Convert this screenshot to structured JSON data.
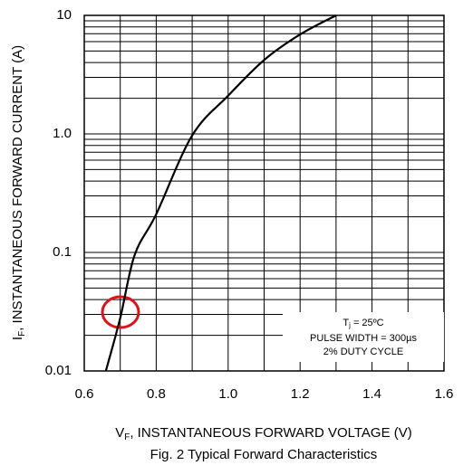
{
  "chart_data": {
    "type": "line",
    "title": "Fig. 2  Typical Forward Characteristics",
    "x_label": {
      "symbol": "V",
      "subscript": "F",
      "text": ", INSTANTANEOUS FORWARD VOLTAGE (V)"
    },
    "y_label": {
      "symbol": "I",
      "subscript": "F",
      "text": ", INSTANTANEOUS FORWARD CURRENT (A)"
    },
    "annotation": {
      "line1": {
        "symbol": "T",
        "subscript": "j",
        "text": " = 25ºC"
      },
      "line2": "PULSE WIDTH = 300µs",
      "line3": "2% DUTY CYCLE"
    },
    "xlim": [
      0.6,
      1.6
    ],
    "xticks": [
      0.6,
      0.8,
      {
        "value": 1,
        "label": "1.0"
      },
      1.2,
      1.4,
      1.6
    ],
    "ylim": [
      0.01,
      10
    ],
    "yticks": [
      {
        "value": 0.01,
        "label": "0.01"
      },
      0.1,
      {
        "value": 1,
        "label": "1.0"
      },
      10
    ],
    "log_y": true,
    "grid": true,
    "minor_grid": true,
    "series": [
      {
        "color": "#000000",
        "x": [
          0.66,
          0.7,
          0.74,
          0.8,
          0.9,
          1.0,
          1.1,
          1.2,
          1.3
        ],
        "values": [
          0.01,
          0.028,
          0.095,
          0.21,
          0.97,
          2.1,
          4.2,
          6.9,
          10
        ]
      }
    ]
  }
}
